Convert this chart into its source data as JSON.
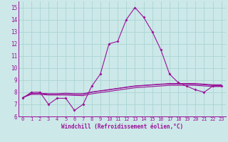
{
  "xlabel": "Windchill (Refroidissement éolien,°C)",
  "xlim": [
    -0.5,
    23.5
  ],
  "ylim": [
    6,
    15.5
  ],
  "yticks": [
    6,
    7,
    8,
    9,
    10,
    11,
    12,
    13,
    14,
    15
  ],
  "xticks": [
    0,
    1,
    2,
    3,
    4,
    5,
    6,
    7,
    8,
    9,
    10,
    11,
    12,
    13,
    14,
    15,
    16,
    17,
    18,
    19,
    20,
    21,
    22,
    23
  ],
  "bg_color": "#cce8e8",
  "grid_color": "#aad4d4",
  "line_color": "#991199",
  "line1": [
    7.5,
    8.0,
    8.0,
    7.0,
    7.5,
    7.5,
    6.5,
    7.0,
    8.5,
    9.5,
    12.0,
    12.2,
    14.0,
    15.0,
    14.2,
    13.0,
    11.5,
    9.5,
    8.8,
    8.5,
    8.2,
    8.0,
    8.5,
    8.5
  ],
  "line2": [
    7.55,
    7.9,
    7.9,
    7.82,
    7.82,
    7.82,
    7.82,
    7.82,
    8.0,
    8.1,
    8.2,
    8.3,
    8.4,
    8.5,
    8.55,
    8.6,
    8.65,
    8.68,
    8.68,
    8.68,
    8.65,
    8.62,
    8.55,
    8.55
  ],
  "line3": [
    7.55,
    7.88,
    7.92,
    7.88,
    7.88,
    7.92,
    7.88,
    7.88,
    8.02,
    8.12,
    8.22,
    8.32,
    8.42,
    8.52,
    8.57,
    8.62,
    8.67,
    8.72,
    8.72,
    8.72,
    8.72,
    8.67,
    8.62,
    8.62
  ],
  "line4": [
    7.55,
    7.82,
    7.82,
    7.77,
    7.77,
    7.77,
    7.74,
    7.72,
    7.87,
    7.97,
    8.07,
    8.17,
    8.27,
    8.37,
    8.42,
    8.47,
    8.52,
    8.57,
    8.57,
    8.57,
    8.57,
    8.52,
    8.47,
    8.47
  ]
}
